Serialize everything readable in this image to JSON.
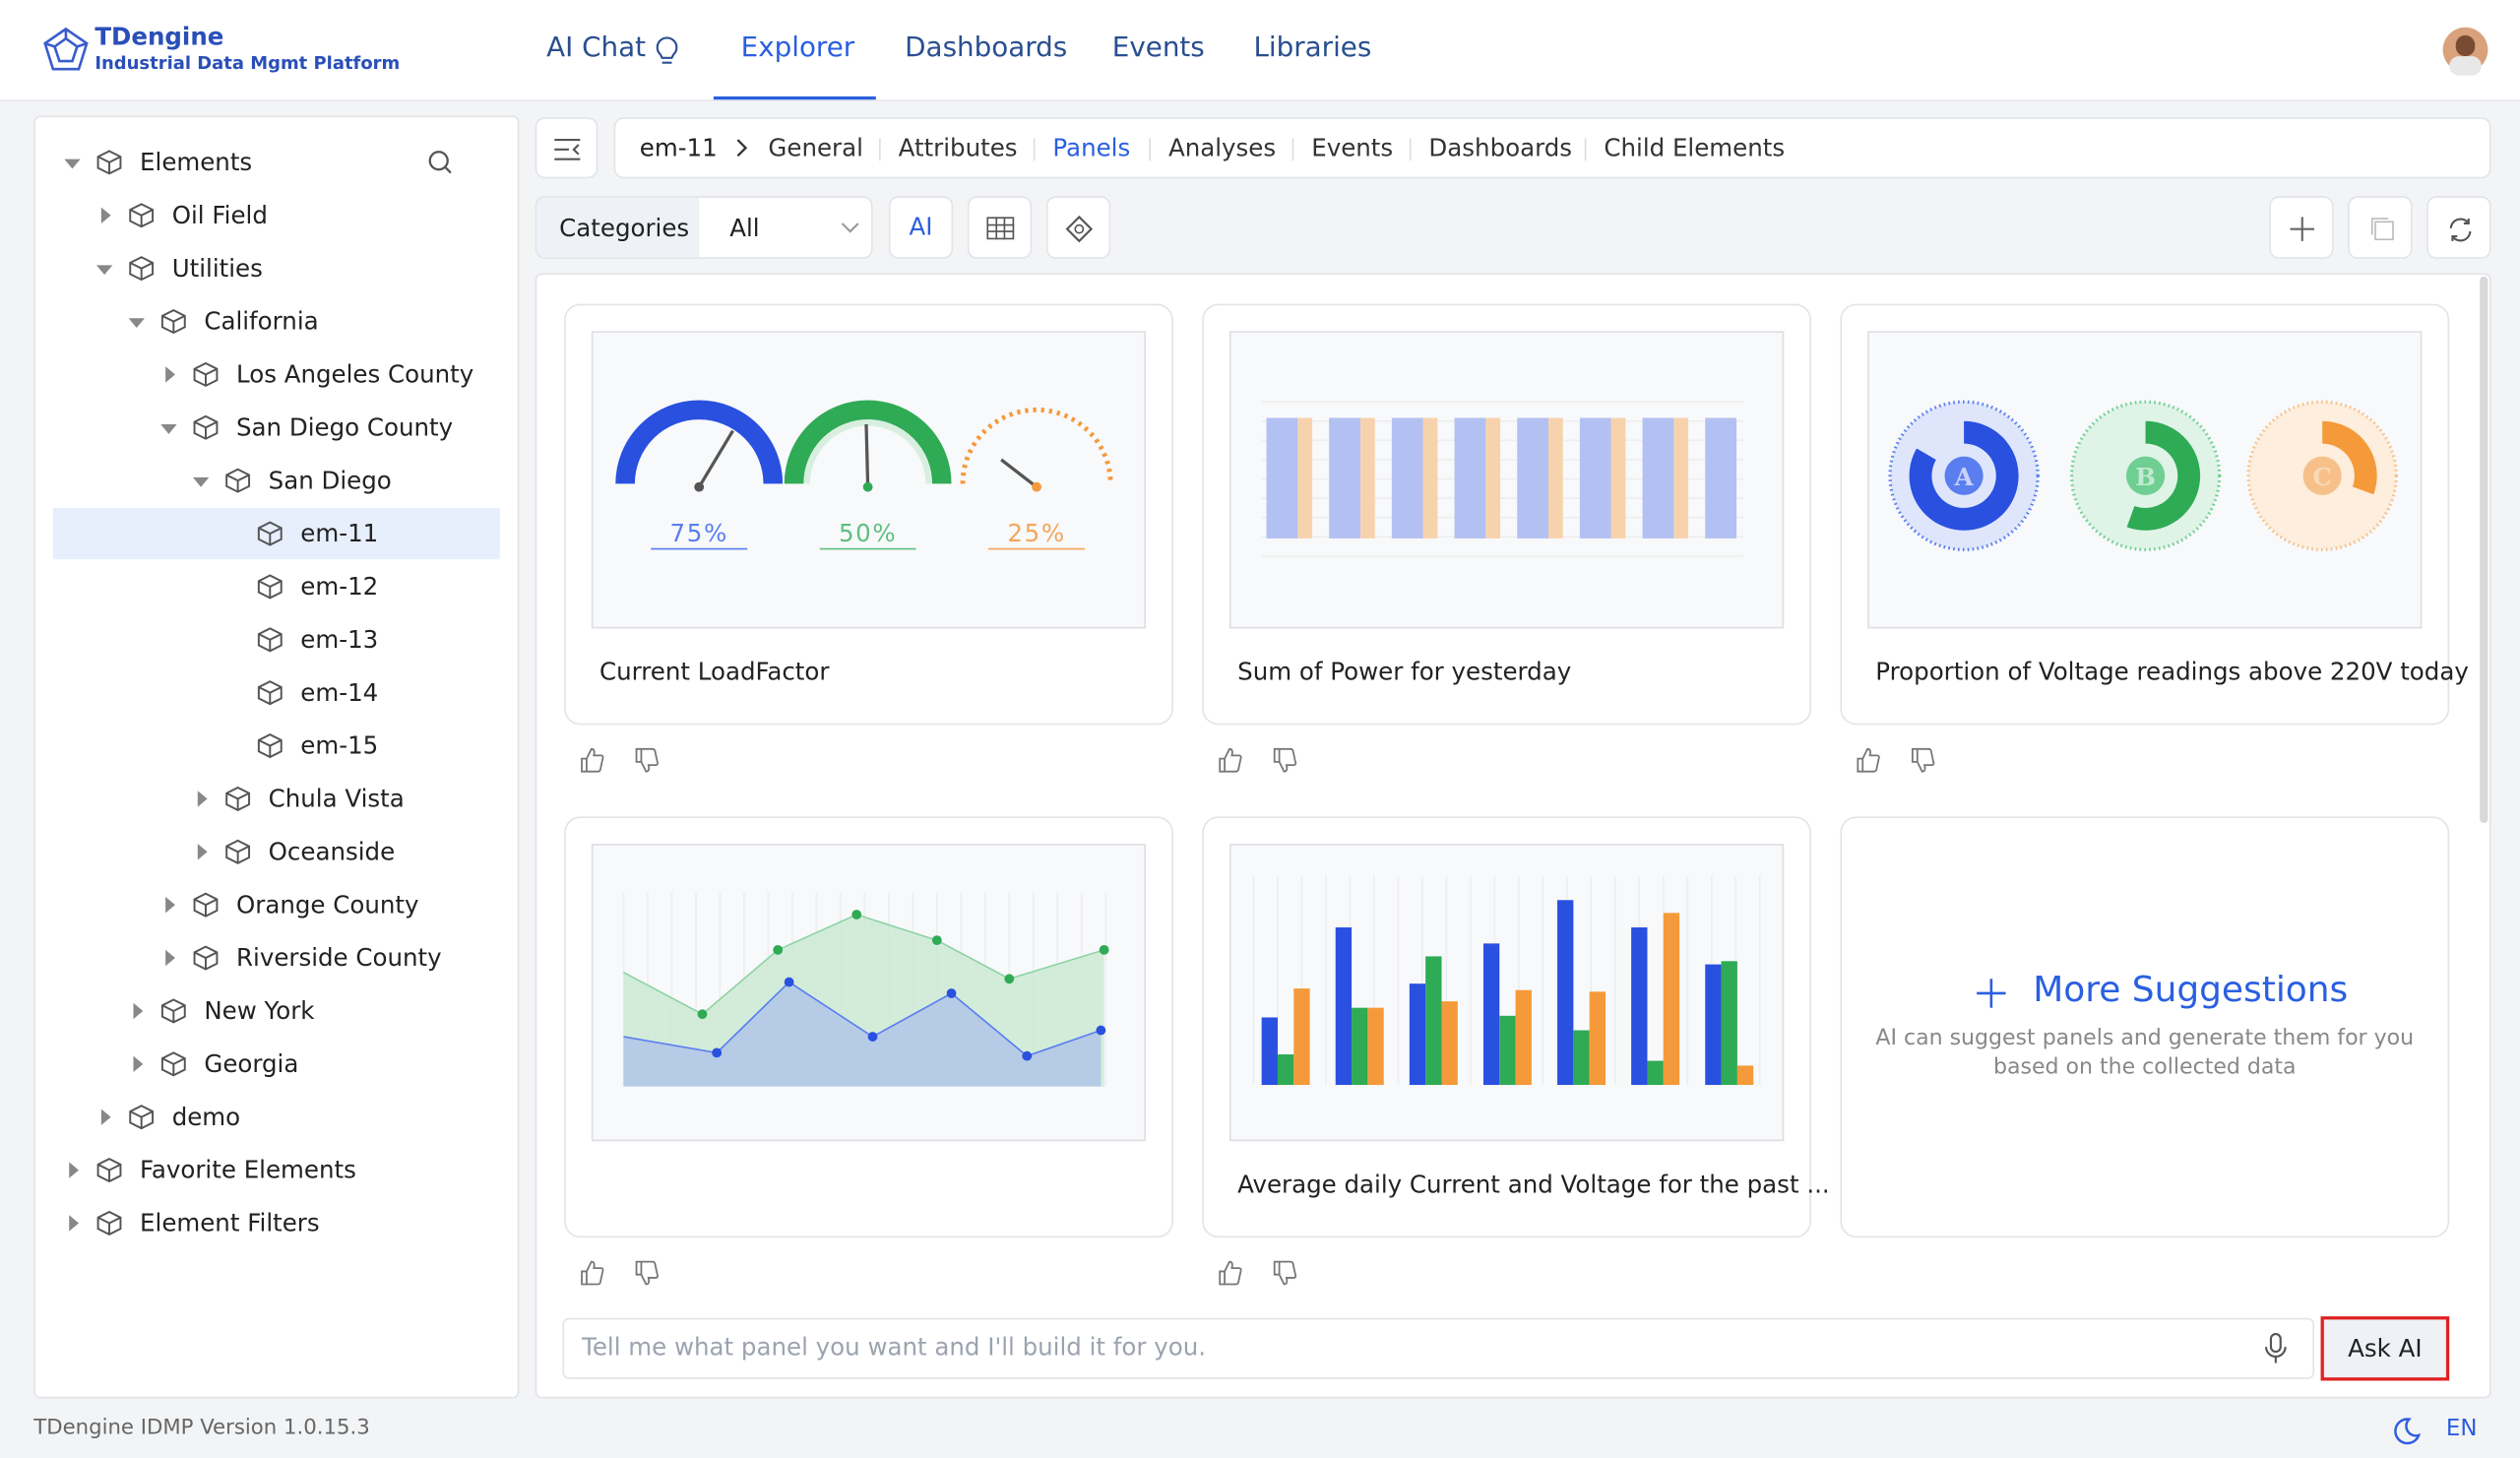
{
  "header": {
    "logo_title": "TDengine",
    "logo_subtitle": "Industrial Data Mgmt Platform",
    "nav": [
      "AI Chat",
      "Explorer",
      "Dashboards",
      "Events",
      "Libraries"
    ],
    "active_nav": 1
  },
  "tree": [
    {
      "label": "Elements",
      "level": 0,
      "state": "expanded"
    },
    {
      "label": "Oil Field",
      "level": 1,
      "state": "collapsed"
    },
    {
      "label": "Utilities",
      "level": 1,
      "state": "expanded"
    },
    {
      "label": "California",
      "level": 2,
      "state": "expanded"
    },
    {
      "label": "Los Angeles County",
      "level": 3,
      "state": "collapsed"
    },
    {
      "label": "San Diego County",
      "level": 3,
      "state": "expanded"
    },
    {
      "label": "San Diego",
      "level": 4,
      "state": "expanded"
    },
    {
      "label": "em-11",
      "level": 5,
      "state": "leaf",
      "selected": true
    },
    {
      "label": "em-12",
      "level": 5,
      "state": "leaf"
    },
    {
      "label": "em-13",
      "level": 5,
      "state": "leaf"
    },
    {
      "label": "em-14",
      "level": 5,
      "state": "leaf"
    },
    {
      "label": "em-15",
      "level": 5,
      "state": "leaf"
    },
    {
      "label": "Chula Vista",
      "level": 4,
      "state": "collapsed"
    },
    {
      "label": "Oceanside",
      "level": 4,
      "state": "collapsed"
    },
    {
      "label": "Orange County",
      "level": 3,
      "state": "collapsed"
    },
    {
      "label": "Riverside County",
      "level": 3,
      "state": "collapsed"
    },
    {
      "label": "New York",
      "level": 2,
      "state": "collapsed"
    },
    {
      "label": "Georgia",
      "level": 2,
      "state": "collapsed"
    },
    {
      "label": "demo",
      "level": 1,
      "state": "collapsed"
    },
    {
      "label": "Favorite Elements",
      "level": 0,
      "state": "collapsed"
    },
    {
      "label": "Element Filters",
      "level": 0,
      "state": "collapsed"
    }
  ],
  "breadcrumb": {
    "element": "em-11",
    "tabs": [
      "General",
      "Attributes",
      "Panels",
      "Analyses",
      "Events",
      "Dashboards",
      "Child Elements"
    ],
    "active_tab": 2
  },
  "toolbar": {
    "categories": "Categories",
    "filter": "All",
    "ai": "AI"
  },
  "panels": [
    {
      "title": "Current LoadFactor",
      "gauge_labels": [
        "75%",
        "50%",
        "25%"
      ]
    },
    {
      "title": "Sum of Power for yesterday"
    },
    {
      "title": "Proportion of Voltage readings above 220V today",
      "pie_labels": [
        "A",
        "B",
        "C"
      ]
    },
    {
      "title": null
    },
    {
      "title": "Average daily Current and Voltage for the past ..."
    }
  ],
  "suggestions": {
    "title": "More Suggestions",
    "description": [
      "AI can suggest panels and generate them for you",
      "based on the collected data"
    ]
  },
  "prompt": {
    "placeholder": "Tell me what panel you want and I'll build it for you.",
    "button": "Ask AI"
  },
  "footer": {
    "version": "TDengine IDMP Version 1.0.15.3",
    "language": "EN"
  }
}
